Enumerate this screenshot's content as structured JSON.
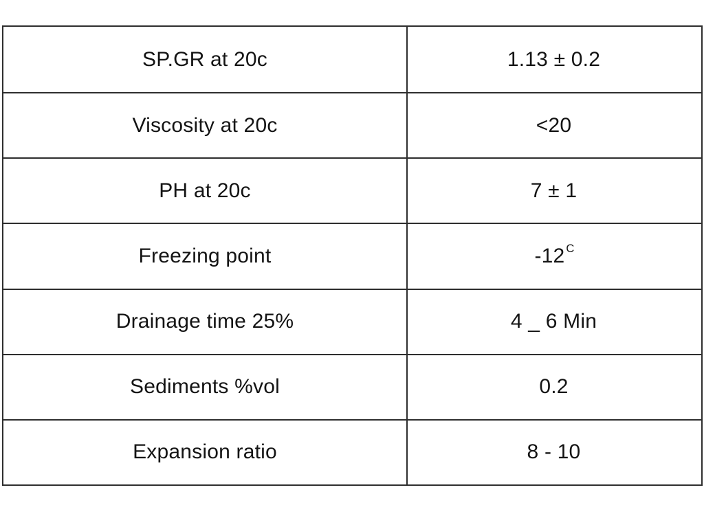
{
  "page": {
    "background_color": "#ffffff",
    "border_color": "#2e2e2e",
    "text_color": "#141414"
  },
  "table": {
    "rows": [
      {
        "label": "SP.GR at 20c",
        "value": "1.13 ± 0.2"
      },
      {
        "label": "Viscosity at 20c",
        "value": "<20"
      },
      {
        "label": "PH at 20c",
        "value": "7 ± 1"
      },
      {
        "label": "Freezing point",
        "value": "-12",
        "value_sup": "C"
      },
      {
        "label": "Drainage time 25%",
        "value": "4 _ 6 Min"
      },
      {
        "label": "Sediments %vol",
        "value": "0.2"
      },
      {
        "label": "Expansion ratio",
        "value": "8 - 10"
      }
    ]
  }
}
